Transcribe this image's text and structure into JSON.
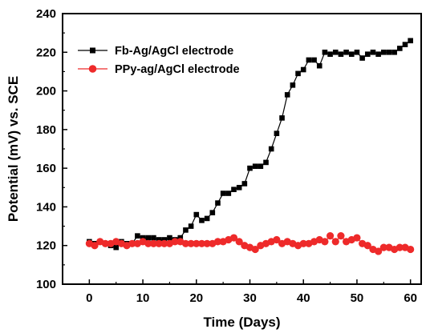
{
  "chart_data": {
    "type": "line",
    "title": "",
    "xlabel": "Time (Days)",
    "ylabel": "Potential (mV) vs. SCE",
    "xlim": [
      -5,
      62
    ],
    "ylim": [
      100,
      240
    ],
    "xticks": [
      0,
      10,
      20,
      30,
      40,
      50,
      60
    ],
    "yticks": [
      100,
      120,
      140,
      160,
      180,
      200,
      220,
      240
    ],
    "grid": false,
    "legend_position": "top-left",
    "series": [
      {
        "name": "Fb-Ag/AgCl electrode",
        "color": "#000000",
        "marker": "square",
        "x": [
          0,
          1,
          2,
          3,
          4,
          5,
          6,
          7,
          8,
          9,
          10,
          11,
          12,
          13,
          14,
          15,
          16,
          17,
          18,
          19,
          20,
          21,
          22,
          23,
          24,
          25,
          26,
          27,
          28,
          29,
          30,
          31,
          32,
          33,
          34,
          35,
          36,
          37,
          38,
          39,
          40,
          41,
          42,
          43,
          44,
          45,
          46,
          47,
          48,
          49,
          50,
          51,
          52,
          53,
          54,
          55,
          56,
          57,
          58,
          59,
          60
        ],
        "y": [
          122,
          121,
          122,
          121,
          120,
          119,
          122,
          121,
          121,
          125,
          124,
          124,
          124,
          123,
          123,
          124,
          123,
          124,
          128,
          130,
          136,
          133,
          134,
          137,
          142,
          147,
          147,
          149,
          150,
          152,
          160,
          161,
          161,
          163,
          170,
          178,
          186,
          198,
          203,
          209,
          211,
          216,
          216,
          213,
          220,
          219,
          220,
          219,
          220,
          219,
          220,
          217,
          219,
          220,
          219,
          220,
          220,
          220,
          222,
          224,
          226
        ]
      },
      {
        "name": "PPy-ag/AgCl electrode",
        "color": "#ee2a2a",
        "marker": "circle",
        "x": [
          0,
          1,
          2,
          3,
          4,
          5,
          6,
          7,
          8,
          9,
          10,
          11,
          12,
          13,
          14,
          15,
          16,
          17,
          18,
          19,
          20,
          21,
          22,
          23,
          24,
          25,
          26,
          27,
          28,
          29,
          30,
          31,
          32,
          33,
          34,
          35,
          36,
          37,
          38,
          39,
          40,
          41,
          42,
          43,
          44,
          45,
          46,
          47,
          48,
          49,
          50,
          51,
          52,
          53,
          54,
          55,
          56,
          57,
          58,
          59,
          60
        ],
        "y": [
          121,
          120,
          122,
          121,
          121,
          122,
          121,
          120,
          121,
          121,
          122,
          121,
          121,
          121,
          121,
          121,
          122,
          122,
          121,
          121,
          121,
          121,
          121,
          121,
          122,
          122,
          123,
          124,
          122,
          120,
          119,
          118,
          120,
          121,
          122,
          123,
          121,
          122,
          121,
          120,
          121,
          121,
          122,
          123,
          122,
          125,
          122,
          125,
          122,
          123,
          124,
          121,
          120,
          118,
          117,
          119,
          119,
          118,
          119,
          119,
          118
        ]
      }
    ]
  }
}
